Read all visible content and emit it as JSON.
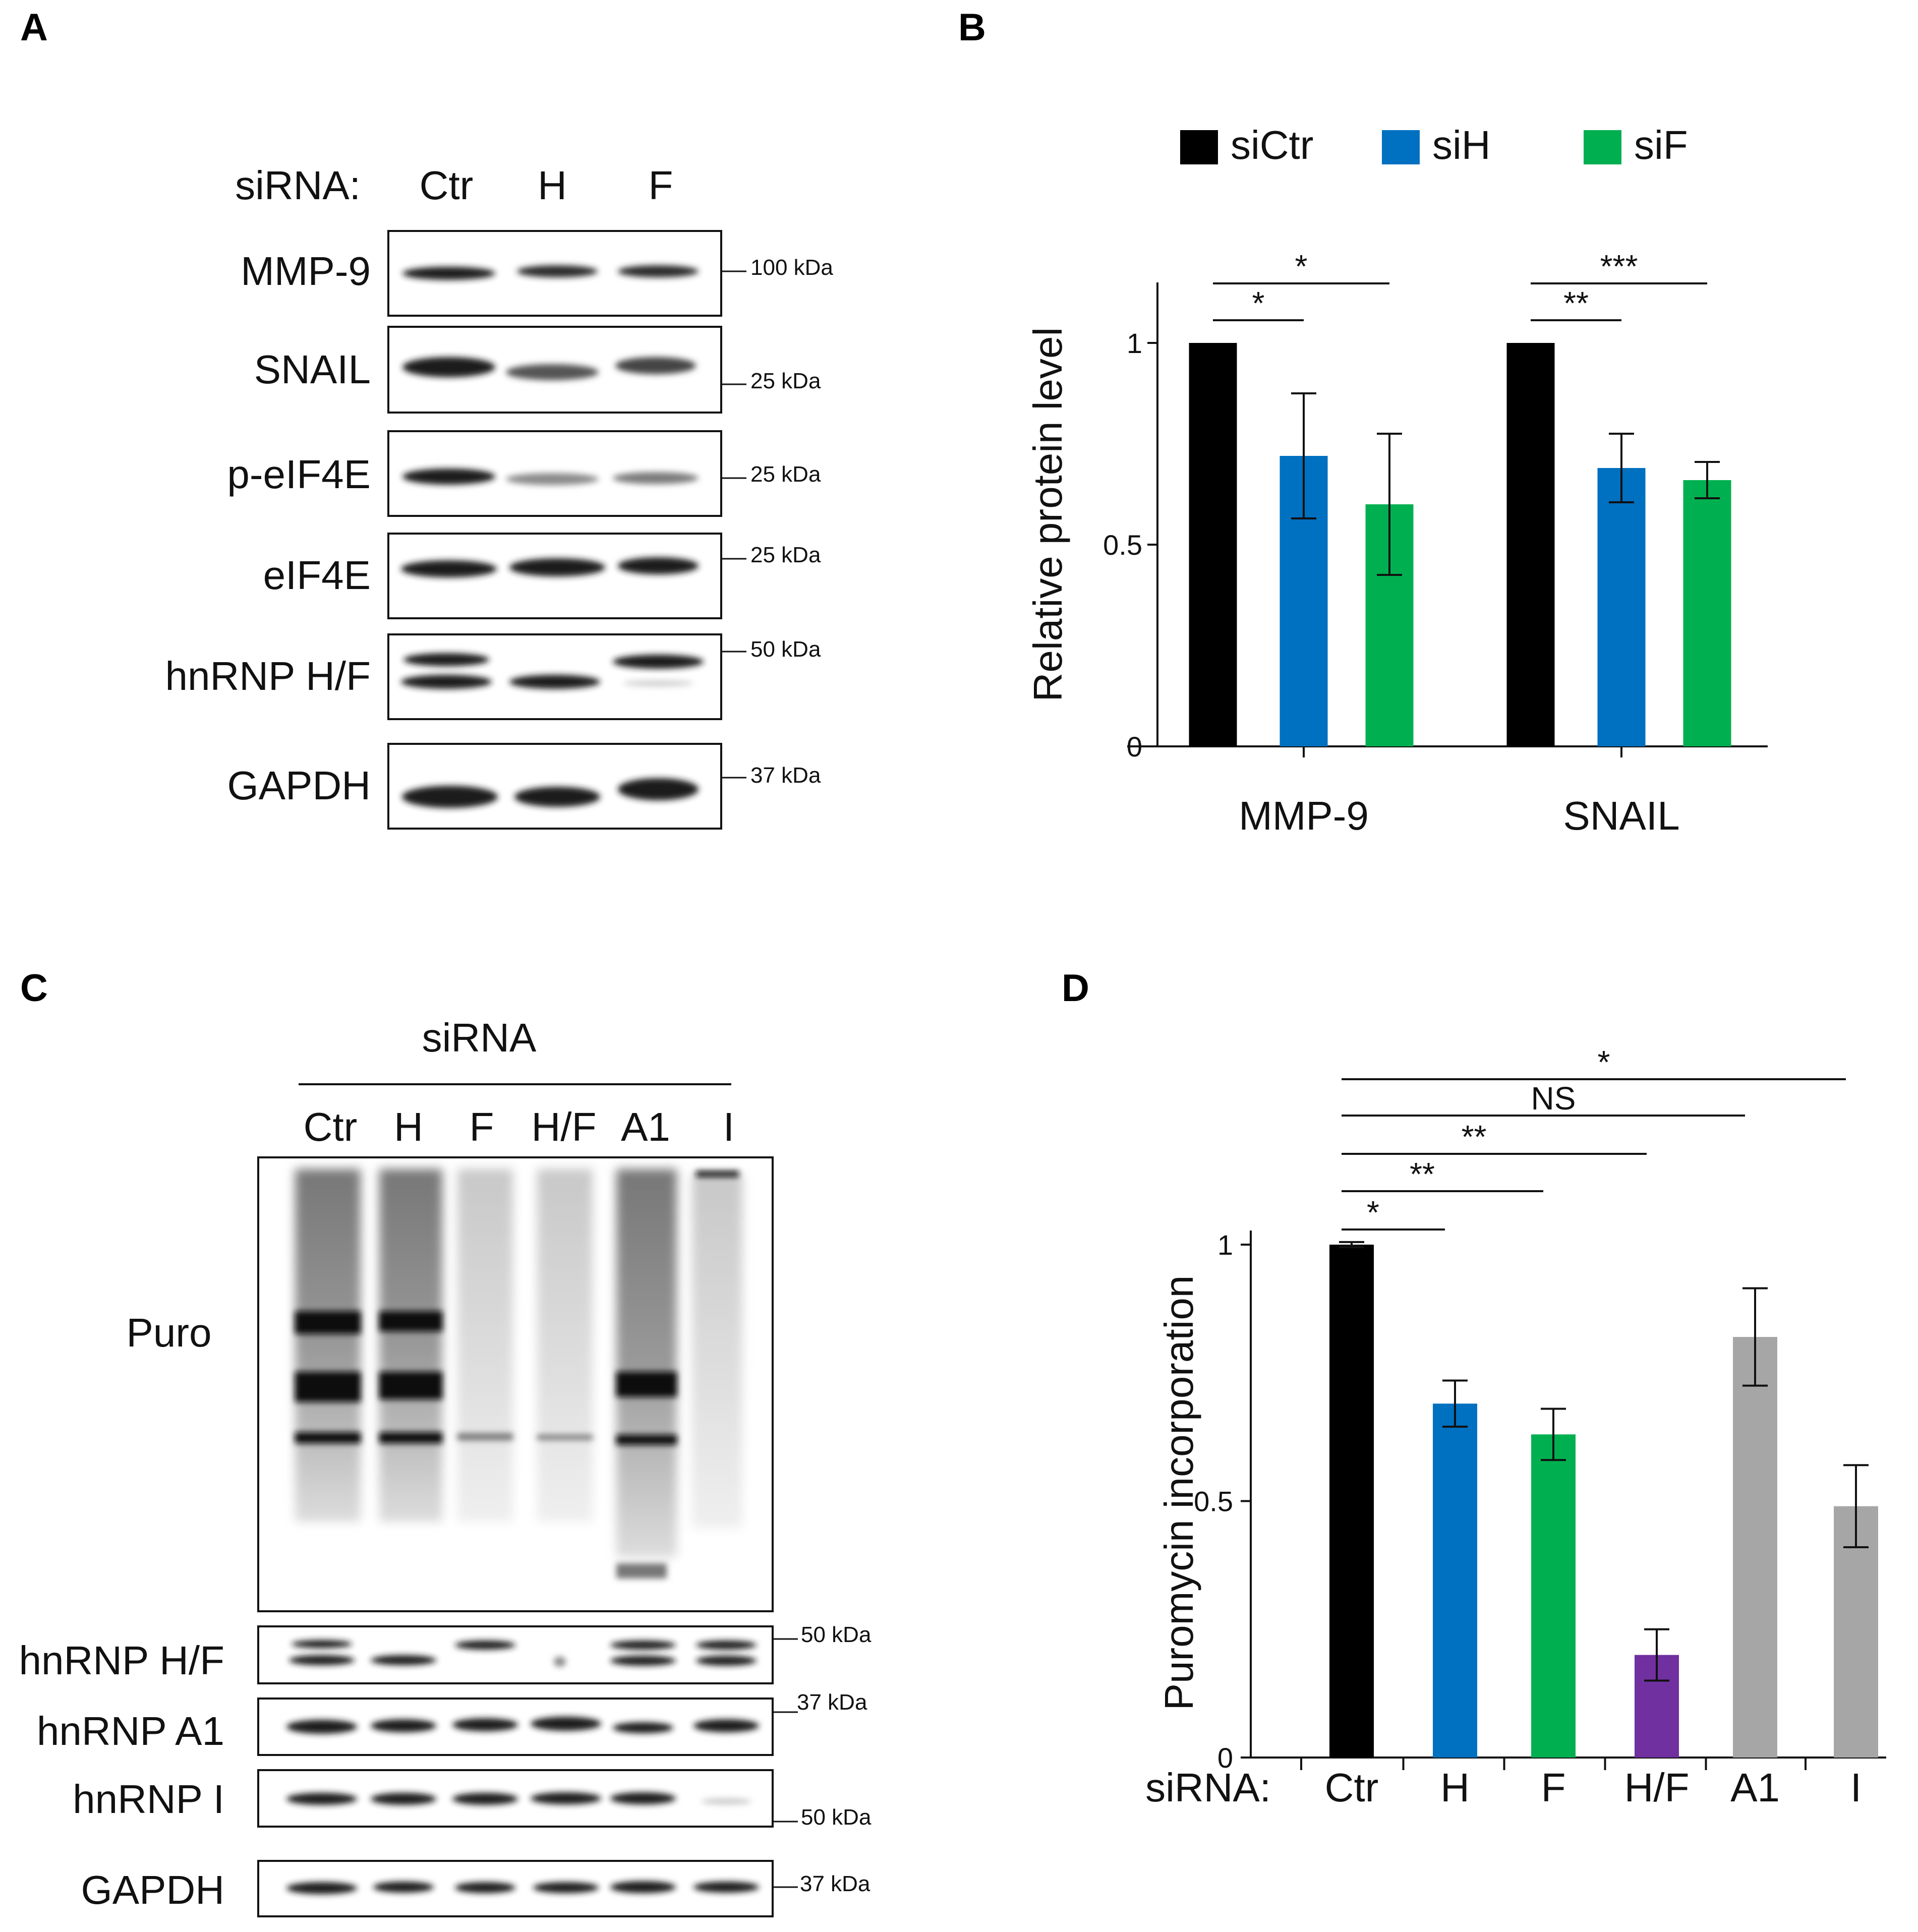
{
  "panels": {
    "A": {
      "letter": "A",
      "header_label": "siRNA:",
      "lanes": [
        "Ctr",
        "H",
        "F"
      ],
      "blots": [
        {
          "label": "MMP-9",
          "marker": "100 kDa"
        },
        {
          "label": "SNAIL",
          "marker": "25 kDa"
        },
        {
          "label": "p-eIF4E",
          "marker": "25 kDa"
        },
        {
          "label": "eIF4E",
          "marker": "25 kDa"
        },
        {
          "label": "hnRNP H/F",
          "marker": "50 kDa"
        },
        {
          "label": "GAPDH",
          "marker": "37 kDa"
        }
      ]
    },
    "B": {
      "letter": "B"
    },
    "C": {
      "letter": "C",
      "header_label": "siRNA",
      "lanes": [
        "Ctr",
        "H",
        "F",
        "H/F",
        "A1",
        "I"
      ],
      "puro_label": "Puro",
      "blots": [
        {
          "label": "hnRNP H/F",
          "marker": "50 kDa"
        },
        {
          "label": "hnRNP A1",
          "marker": "37 kDa"
        },
        {
          "label": "hnRNP I",
          "marker": "50 kDa"
        },
        {
          "label": "GAPDH",
          "marker": "37 kDa"
        }
      ]
    },
    "D": {
      "letter": "D",
      "axis_prefix": "siRNA:"
    }
  },
  "chart_data": [
    {
      "panel": "B",
      "type": "bar",
      "categories": [
        "MMP-9",
        "SNAIL"
      ],
      "ylabel": "Relative protein level",
      "ylim": [
        0,
        1
      ],
      "yticks": [
        "0",
        "0.5",
        "1"
      ],
      "legend_position": "top",
      "series": [
        {
          "name": "siCtr",
          "color": "#000000",
          "values": [
            1.0,
            1.0
          ],
          "errors": [
            0,
            0
          ]
        },
        {
          "name": "siH",
          "color": "#0070c0",
          "values": [
            0.72,
            0.69
          ],
          "errors": [
            0.155,
            0.085
          ]
        },
        {
          "name": "siF",
          "color": "#00b050",
          "values": [
            0.6,
            0.66
          ],
          "errors": [
            0.175,
            0.045
          ]
        }
      ],
      "significance": [
        {
          "group": 0,
          "from": 0,
          "to": 1,
          "text": "*",
          "level": 1
        },
        {
          "group": 0,
          "from": 0,
          "to": 2,
          "text": "*",
          "level": 2
        },
        {
          "group": 1,
          "from": 0,
          "to": 1,
          "text": "**",
          "level": 1
        },
        {
          "group": 1,
          "from": 0,
          "to": 2,
          "text": "***",
          "level": 2
        }
      ]
    },
    {
      "panel": "D",
      "type": "bar",
      "categories": [
        "Ctr",
        "H",
        "F",
        "H/F",
        "A1",
        "I"
      ],
      "ylabel": "Puromycin incorporation",
      "ylim": [
        0,
        1
      ],
      "yticks": [
        "0",
        "0.5",
        "1"
      ],
      "colors": [
        "#000000",
        "#0070c0",
        "#00b050",
        "#7030a0",
        "#a6a6a6",
        "#a6a6a6"
      ],
      "values": [
        1.0,
        0.69,
        0.63,
        0.2,
        0.82,
        0.49
      ],
      "errors": [
        0.005,
        0.045,
        0.05,
        0.05,
        0.095,
        0.08
      ],
      "significance": [
        {
          "from": 0,
          "to": 1,
          "text": "*",
          "level": 1
        },
        {
          "from": 0,
          "to": 2,
          "text": "**",
          "level": 2
        },
        {
          "from": 0,
          "to": 3,
          "text": "**",
          "level": 3
        },
        {
          "from": 0,
          "to": 4,
          "text": "NS",
          "level": 4
        },
        {
          "from": 0,
          "to": 5,
          "text": "*",
          "level": 5
        }
      ]
    }
  ]
}
